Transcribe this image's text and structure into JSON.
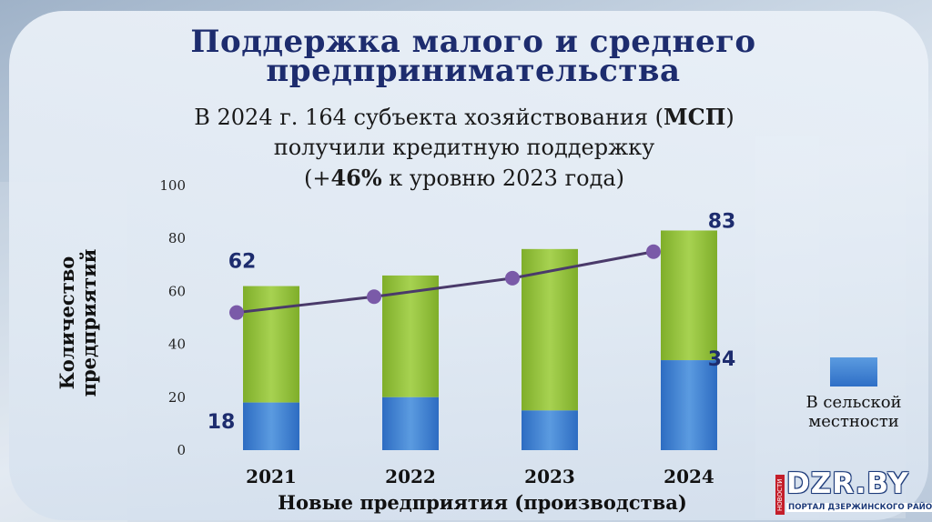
{
  "title": "Поддержка малого и среднего предпринимательства",
  "subtitle": {
    "line1_before": "В 2024 г. 164 субъекта хозяйствования (",
    "line1_bold": "МСП",
    "line1_after": ")",
    "line2": "получили кредитную поддержку",
    "line3_before": "(+",
    "line3_bold": "46%",
    "line3_after": " к уровню 2023 года)"
  },
  "chart_data": {
    "type": "bar",
    "stacked": true,
    "categories": [
      "2021",
      "2022",
      "2023",
      "2024"
    ],
    "series": [
      {
        "name": "В сельской местности",
        "values": [
          18,
          20,
          15,
          34
        ],
        "color": "#3a7fd6"
      },
      {
        "name": "",
        "values": [
          44,
          46,
          61,
          49
        ],
        "color": "#8fbf35"
      }
    ],
    "totals": [
      62,
      66,
      76,
      83
    ],
    "line_values": [
      52,
      58,
      65,
      75
    ],
    "line_color": "#4a3a6a",
    "marker_color": "#7a5aa8",
    "data_labels": [
      {
        "text": "62",
        "category": "2021",
        "value": 62,
        "anchor": "above-left"
      },
      {
        "text": "18",
        "category": "2021",
        "value": 18,
        "anchor": "below-left"
      },
      {
        "text": "83",
        "category": "2024",
        "value": 83,
        "anchor": "above-right"
      },
      {
        "text": "34",
        "category": "2024",
        "value": 34,
        "anchor": "right"
      }
    ],
    "yticks": [
      0,
      20,
      40,
      60,
      80,
      100
    ],
    "ylim": [
      0,
      100
    ],
    "ylabel": "Количество предприятий",
    "xlabel": "Новые предприятия (производства)",
    "legend": {
      "label": "В сельской местности",
      "placement": "right"
    }
  },
  "logo": {
    "text": "DZR.BY",
    "tag": "НОВОСТИ",
    "sub": "ПОРТАЛ ДЗЕРЖИНСКОГО РАЙОНА"
  }
}
